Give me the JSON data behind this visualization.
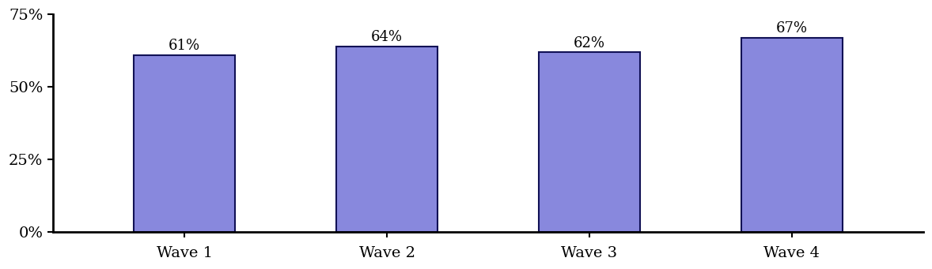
{
  "categories": [
    "Wave 1",
    "Wave 2",
    "Wave 3",
    "Wave 4"
  ],
  "values": [
    0.61,
    0.64,
    0.62,
    0.67
  ],
  "labels": [
    "61%",
    "64%",
    "62%",
    "67%"
  ],
  "bar_color": "#8888dd",
  "bar_edgecolor": "#111155",
  "ylim": [
    0,
    0.75
  ],
  "yticks": [
    0,
    0.25,
    0.5,
    0.75
  ],
  "ytick_labels": [
    "0%",
    "25%",
    "50%",
    "75%"
  ],
  "background_color": "#ffffff",
  "label_fontsize": 14,
  "tick_fontsize": 14,
  "bar_width": 0.5,
  "annotation_fontsize": 13
}
